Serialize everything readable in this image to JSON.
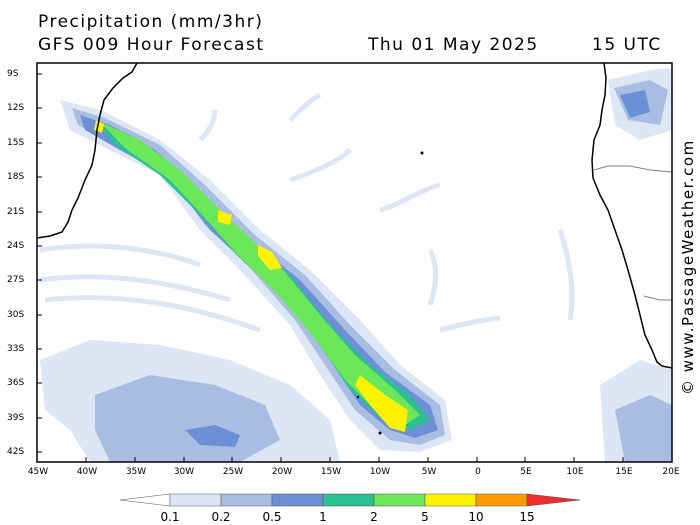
{
  "header": {
    "title": "Precipitation (mm/3hr)",
    "subtitle": "GFS 009 Hour Forecast",
    "date": "Thu 01 May 2025",
    "time": "15 UTC"
  },
  "map": {
    "lat_labels": [
      "9S",
      "12S",
      "15S",
      "18S",
      "21S",
      "24S",
      "27S",
      "30S",
      "33S",
      "36S",
      "39S",
      "42S"
    ],
    "lon_labels": [
      "45W",
      "40W",
      "35W",
      "30W",
      "25W",
      "20W",
      "15W",
      "10W",
      "5W",
      "0",
      "5E",
      "10E",
      "15E",
      "20E"
    ],
    "colors": {
      "ocean": "#ffffff",
      "coast": "#000000",
      "border": "#808080"
    }
  },
  "legend": {
    "labels": [
      "0.1",
      "0.2",
      "0.5",
      "1",
      "2",
      "5",
      "10",
      "15"
    ],
    "colors": [
      "#ffffff",
      "#dde6f4",
      "#a9bde3",
      "#6c8fd6",
      "#2dbf94",
      "#6be85a",
      "#fff200",
      "#ff9b00",
      "#ef2b2b"
    ]
  },
  "credit": "© www.PassageWeather.com"
}
